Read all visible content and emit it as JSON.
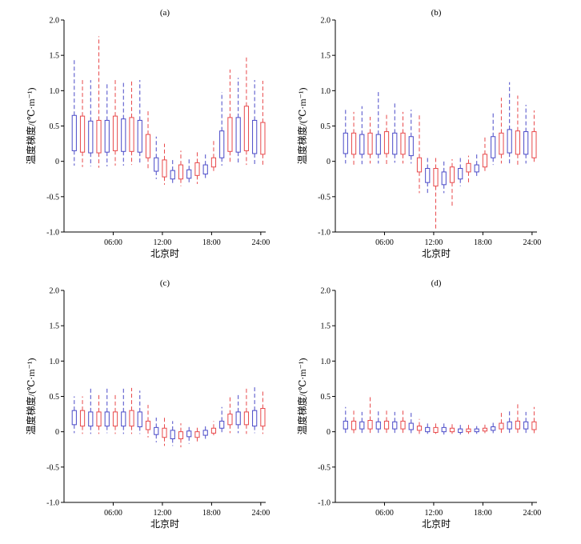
{
  "figure": {
    "x_tick_labels": [
      "06:00",
      "12:00",
      "18:00",
      "24:00"
    ],
    "y_tick_labels": [
      "-1.0",
      "-0.5",
      "0",
      "0.5",
      "1.0",
      "1.5",
      "2.0"
    ]
  },
  "chart_data": [
    {
      "type": "box",
      "panel_label": "(a)",
      "xlabel": "北京时",
      "ylabel": "温度梯度/(℃·m⁻¹)",
      "ylim": [
        -1.0,
        2.0
      ],
      "xlim": [
        0,
        24
      ],
      "x_ticks": [
        6,
        12,
        18,
        24
      ],
      "grid": false,
      "series": [
        {
          "color": "#4a4ac8",
          "boxes": [
            {
              "x": 1.25,
              "whislo": -0.06,
              "q1": 0.15,
              "q3": 0.65,
              "whishi": 1.44
            },
            {
              "x": 3.25,
              "whislo": -0.07,
              "q1": 0.12,
              "q3": 0.57,
              "whishi": 1.15
            },
            {
              "x": 5.25,
              "whislo": -0.07,
              "q1": 0.13,
              "q3": 0.58,
              "whishi": 1.1
            },
            {
              "x": 7.25,
              "whislo": -0.06,
              "q1": 0.14,
              "q3": 0.6,
              "whishi": 1.13
            },
            {
              "x": 9.25,
              "whislo": -0.05,
              "q1": 0.13,
              "q3": 0.58,
              "whishi": 1.15
            },
            {
              "x": 11.25,
              "whislo": -0.25,
              "q1": -0.14,
              "q3": 0.05,
              "whishi": 0.35
            },
            {
              "x": 13.25,
              "whislo": -0.32,
              "q1": -0.25,
              "q3": -0.13,
              "whishi": 0.05
            },
            {
              "x": 15.25,
              "whislo": -0.3,
              "q1": -0.24,
              "q3": -0.12,
              "whishi": 0.05
            },
            {
              "x": 17.25,
              "whislo": -0.27,
              "q1": -0.18,
              "q3": -0.05,
              "whishi": 0.12
            },
            {
              "x": 19.25,
              "whislo": -0.06,
              "q1": 0.05,
              "q3": 0.43,
              "whishi": 0.98
            },
            {
              "x": 21.25,
              "whislo": -0.05,
              "q1": 0.13,
              "q3": 0.62,
              "whishi": 1.18
            },
            {
              "x": 23.25,
              "whislo": -0.06,
              "q1": 0.11,
              "q3": 0.58,
              "whishi": 1.15
            }
          ]
        },
        {
          "color": "#e8494b",
          "boxes": [
            {
              "x": 2.25,
              "whislo": -0.08,
              "q1": 0.13,
              "q3": 0.64,
              "whishi": 1.18
            },
            {
              "x": 4.25,
              "whislo": -0.09,
              "q1": 0.12,
              "q3": 0.58,
              "whishi": 1.77
            },
            {
              "x": 6.25,
              "whislo": -0.06,
              "q1": 0.15,
              "q3": 0.64,
              "whishi": 1.17
            },
            {
              "x": 8.25,
              "whislo": -0.05,
              "q1": 0.14,
              "q3": 0.62,
              "whishi": 1.16
            },
            {
              "x": 10.25,
              "whislo": -0.12,
              "q1": 0.05,
              "q3": 0.38,
              "whishi": 0.72
            },
            {
              "x": 12.25,
              "whislo": -0.33,
              "q1": -0.22,
              "q3": 0.02,
              "whishi": 0.25
            },
            {
              "x": 14.25,
              "whislo": -0.35,
              "q1": -0.25,
              "q3": -0.05,
              "whishi": 0.15
            },
            {
              "x": 16.25,
              "whislo": -0.32,
              "q1": -0.2,
              "q3": -0.02,
              "whishi": 0.15
            },
            {
              "x": 18.25,
              "whislo": -0.15,
              "q1": -0.08,
              "q3": 0.05,
              "whishi": 0.3
            },
            {
              "x": 20.25,
              "whislo": -0.03,
              "q1": 0.14,
              "q3": 0.62,
              "whishi": 1.3
            },
            {
              "x": 22.25,
              "whislo": -0.05,
              "q1": 0.15,
              "q3": 0.78,
              "whishi": 1.47
            },
            {
              "x": 24.25,
              "whislo": -0.07,
              "q1": 0.1,
              "q3": 0.55,
              "whishi": 1.14
            }
          ]
        }
      ]
    },
    {
      "type": "box",
      "panel_label": "(b)",
      "xlabel": "北京时",
      "ylabel": "温度梯度/(℃·m⁻¹)",
      "ylim": [
        -1.0,
        2.0
      ],
      "xlim": [
        0,
        24
      ],
      "x_ticks": [
        6,
        12,
        18,
        24
      ],
      "grid": false,
      "series": [
        {
          "color": "#4a4ac8",
          "boxes": [
            {
              "x": 1.25,
              "whislo": -0.03,
              "q1": 0.11,
              "q3": 0.4,
              "whishi": 0.73
            },
            {
              "x": 3.25,
              "whislo": -0.04,
              "q1": 0.1,
              "q3": 0.38,
              "whishi": 0.78
            },
            {
              "x": 5.25,
              "whislo": -0.03,
              "q1": 0.1,
              "q3": 0.38,
              "whishi": 0.98
            },
            {
              "x": 7.25,
              "whislo": -0.02,
              "q1": 0.1,
              "q3": 0.4,
              "whishi": 0.83
            },
            {
              "x": 9.25,
              "whislo": -0.03,
              "q1": 0.08,
              "q3": 0.35,
              "whishi": 0.73
            },
            {
              "x": 11.25,
              "whislo": -0.48,
              "q1": -0.3,
              "q3": -0.1,
              "whishi": 0.05
            },
            {
              "x": 13.25,
              "whislo": -0.45,
              "q1": -0.33,
              "q3": -0.15,
              "whishi": 0.0
            },
            {
              "x": 15.25,
              "whislo": -0.35,
              "q1": -0.25,
              "q3": -0.1,
              "whishi": 0.05
            },
            {
              "x": 17.25,
              "whislo": -0.22,
              "q1": -0.15,
              "q3": -0.05,
              "whishi": 0.1
            },
            {
              "x": 19.25,
              "whislo": -0.05,
              "q1": 0.05,
              "q3": 0.35,
              "whishi": 0.7
            },
            {
              "x": 21.25,
              "whislo": -0.04,
              "q1": 0.12,
              "q3": 0.45,
              "whishi": 1.12
            },
            {
              "x": 23.25,
              "whislo": -0.03,
              "q1": 0.1,
              "q3": 0.42,
              "whishi": 0.8
            }
          ]
        },
        {
          "color": "#e8494b",
          "boxes": [
            {
              "x": 2.25,
              "whislo": -0.05,
              "q1": 0.1,
              "q3": 0.4,
              "whishi": 0.7
            },
            {
              "x": 4.25,
              "whislo": -0.03,
              "q1": 0.1,
              "q3": 0.4,
              "whishi": 0.63
            },
            {
              "x": 6.25,
              "whislo": -0.04,
              "q1": 0.11,
              "q3": 0.42,
              "whishi": 0.67
            },
            {
              "x": 8.25,
              "whislo": -0.03,
              "q1": 0.1,
              "q3": 0.4,
              "whishi": 0.7
            },
            {
              "x": 10.25,
              "whislo": -0.45,
              "q1": -0.15,
              "q3": 0.05,
              "whishi": 0.65
            },
            {
              "x": 12.25,
              "whislo": -0.98,
              "q1": -0.35,
              "q3": -0.1,
              "whishi": 0.05
            },
            {
              "x": 14.25,
              "whislo": -0.65,
              "q1": -0.3,
              "q3": -0.08,
              "whishi": 0.03
            },
            {
              "x": 16.25,
              "whislo": -0.3,
              "q1": -0.15,
              "q3": -0.03,
              "whishi": 0.08
            },
            {
              "x": 18.25,
              "whislo": -0.15,
              "q1": -0.08,
              "q3": 0.1,
              "whishi": 0.35
            },
            {
              "x": 20.25,
              "whislo": -0.03,
              "q1": 0.1,
              "q3": 0.4,
              "whishi": 0.9
            },
            {
              "x": 22.25,
              "whislo": -0.05,
              "q1": 0.1,
              "q3": 0.43,
              "whishi": 0.93
            },
            {
              "x": 24.25,
              "whislo": -0.03,
              "q1": 0.05,
              "q3": 0.42,
              "whishi": 0.72
            }
          ]
        }
      ]
    },
    {
      "type": "box",
      "panel_label": "(c)",
      "xlabel": "北京时",
      "ylabel": "温度梯度/(℃·m⁻¹)",
      "ylim": [
        -1.0,
        2.0
      ],
      "xlim": [
        0,
        24
      ],
      "x_ticks": [
        6,
        12,
        18,
        24
      ],
      "grid": false,
      "series": [
        {
          "color": "#4a4ac8",
          "boxes": [
            {
              "x": 1.25,
              "whislo": -0.02,
              "q1": 0.1,
              "q3": 0.3,
              "whishi": 0.5
            },
            {
              "x": 3.25,
              "whislo": -0.03,
              "q1": 0.08,
              "q3": 0.28,
              "whishi": 0.62
            },
            {
              "x": 5.25,
              "whislo": -0.02,
              "q1": 0.08,
              "q3": 0.28,
              "whishi": 0.62
            },
            {
              "x": 7.25,
              "whislo": -0.03,
              "q1": 0.08,
              "q3": 0.28,
              "whishi": 0.63
            },
            {
              "x": 9.25,
              "whislo": -0.03,
              "q1": 0.07,
              "q3": 0.28,
              "whishi": 0.58
            },
            {
              "x": 11.25,
              "whislo": -0.15,
              "q1": -0.04,
              "q3": 0.06,
              "whishi": 0.2
            },
            {
              "x": 13.25,
              "whislo": -0.2,
              "q1": -0.1,
              "q3": 0.02,
              "whishi": 0.15
            },
            {
              "x": 15.25,
              "whislo": -0.17,
              "q1": -0.07,
              "q3": 0.01,
              "whishi": 0.1
            },
            {
              "x": 17.25,
              "whislo": -0.1,
              "q1": -0.05,
              "q3": 0.02,
              "whishi": 0.08
            },
            {
              "x": 19.25,
              "whislo": -0.02,
              "q1": 0.05,
              "q3": 0.15,
              "whishi": 0.35
            },
            {
              "x": 21.25,
              "whislo": -0.02,
              "q1": 0.1,
              "q3": 0.28,
              "whishi": 0.52
            },
            {
              "x": 23.25,
              "whislo": -0.02,
              "q1": 0.08,
              "q3": 0.3,
              "whishi": 0.63
            }
          ]
        },
        {
          "color": "#e8494b",
          "boxes": [
            {
              "x": 2.25,
              "whislo": -0.03,
              "q1": 0.08,
              "q3": 0.3,
              "whishi": 0.5
            },
            {
              "x": 4.25,
              "whislo": -0.03,
              "q1": 0.08,
              "q3": 0.28,
              "whishi": 0.55
            },
            {
              "x": 6.25,
              "whislo": -0.03,
              "q1": 0.08,
              "q3": 0.28,
              "whishi": 0.55
            },
            {
              "x": 8.25,
              "whislo": -0.03,
              "q1": 0.08,
              "q3": 0.3,
              "whishi": 0.62
            },
            {
              "x": 10.25,
              "whislo": -0.08,
              "q1": 0.03,
              "q3": 0.15,
              "whishi": 0.38
            },
            {
              "x": 12.25,
              "whislo": -0.2,
              "q1": -0.08,
              "q3": 0.05,
              "whishi": 0.2
            },
            {
              "x": 14.25,
              "whislo": -0.22,
              "q1": -0.1,
              "q3": 0.0,
              "whishi": 0.12
            },
            {
              "x": 16.25,
              "whislo": -0.15,
              "q1": -0.08,
              "q3": 0.0,
              "whishi": 0.08
            },
            {
              "x": 18.25,
              "whislo": -0.05,
              "q1": -0.02,
              "q3": 0.05,
              "whishi": 0.15
            },
            {
              "x": 20.25,
              "whislo": -0.02,
              "q1": 0.1,
              "q3": 0.25,
              "whishi": 0.52
            },
            {
              "x": 22.25,
              "whislo": -0.03,
              "q1": 0.1,
              "q3": 0.28,
              "whishi": 0.62
            },
            {
              "x": 24.25,
              "whislo": -0.03,
              "q1": 0.08,
              "q3": 0.33,
              "whishi": 0.58
            }
          ]
        }
      ]
    },
    {
      "type": "box",
      "panel_label": "(d)",
      "xlabel": "北京时",
      "ylabel": "温度梯度/(℃·m⁻¹)",
      "ylim": [
        -1.0,
        2.0
      ],
      "xlim": [
        0,
        24
      ],
      "x_ticks": [
        6,
        12,
        18,
        24
      ],
      "grid": false,
      "series": [
        {
          "color": "#4a4ac8",
          "boxes": [
            {
              "x": 1.25,
              "whislo": -0.02,
              "q1": 0.04,
              "q3": 0.15,
              "whishi": 0.35
            },
            {
              "x": 3.25,
              "whislo": -0.02,
              "q1": 0.04,
              "q3": 0.14,
              "whishi": 0.28
            },
            {
              "x": 5.25,
              "whislo": -0.02,
              "q1": 0.04,
              "q3": 0.14,
              "whishi": 0.3
            },
            {
              "x": 7.25,
              "whislo": -0.02,
              "q1": 0.04,
              "q3": 0.14,
              "whishi": 0.28
            },
            {
              "x": 9.25,
              "whislo": -0.02,
              "q1": 0.03,
              "q3": 0.12,
              "whishi": 0.28
            },
            {
              "x": 11.25,
              "whislo": -0.03,
              "q1": 0.0,
              "q3": 0.06,
              "whishi": 0.15
            },
            {
              "x": 13.25,
              "whislo": -0.04,
              "q1": 0.0,
              "q3": 0.06,
              "whishi": 0.14
            },
            {
              "x": 15.25,
              "whislo": -0.04,
              "q1": -0.01,
              "q3": 0.04,
              "whishi": 0.12
            },
            {
              "x": 17.25,
              "whislo": -0.03,
              "q1": 0.0,
              "q3": 0.04,
              "whishi": 0.08
            },
            {
              "x": 19.25,
              "whislo": -0.02,
              "q1": 0.02,
              "q3": 0.07,
              "whishi": 0.15
            },
            {
              "x": 21.25,
              "whislo": -0.02,
              "q1": 0.04,
              "q3": 0.14,
              "whishi": 0.3
            },
            {
              "x": 23.25,
              "whislo": -0.02,
              "q1": 0.04,
              "q3": 0.14,
              "whishi": 0.28
            }
          ]
        },
        {
          "color": "#e8494b",
          "boxes": [
            {
              "x": 2.25,
              "whislo": -0.02,
              "q1": 0.03,
              "q3": 0.15,
              "whishi": 0.3
            },
            {
              "x": 4.25,
              "whislo": -0.02,
              "q1": 0.04,
              "q3": 0.16,
              "whishi": 0.52
            },
            {
              "x": 6.25,
              "whislo": -0.02,
              "q1": 0.04,
              "q3": 0.15,
              "whishi": 0.3
            },
            {
              "x": 8.25,
              "whislo": -0.02,
              "q1": 0.04,
              "q3": 0.15,
              "whishi": 0.32
            },
            {
              "x": 10.25,
              "whislo": -0.03,
              "q1": 0.02,
              "q3": 0.08,
              "whishi": 0.18
            },
            {
              "x": 12.25,
              "whislo": -0.03,
              "q1": -0.01,
              "q3": 0.06,
              "whishi": 0.14
            },
            {
              "x": 14.25,
              "whislo": -0.03,
              "q1": 0.0,
              "q3": 0.05,
              "whishi": 0.12
            },
            {
              "x": 16.25,
              "whislo": -0.03,
              "q1": 0.0,
              "q3": 0.04,
              "whishi": 0.1
            },
            {
              "x": 18.25,
              "whislo": -0.02,
              "q1": 0.01,
              "q3": 0.05,
              "whishi": 0.1
            },
            {
              "x": 20.25,
              "whislo": -0.02,
              "q1": 0.04,
              "q3": 0.12,
              "whishi": 0.3
            },
            {
              "x": 22.25,
              "whislo": -0.02,
              "q1": 0.04,
              "q3": 0.15,
              "whishi": 0.42
            },
            {
              "x": 24.25,
              "whislo": -0.02,
              "q1": 0.03,
              "q3": 0.14,
              "whishi": 0.35
            }
          ]
        }
      ]
    }
  ]
}
